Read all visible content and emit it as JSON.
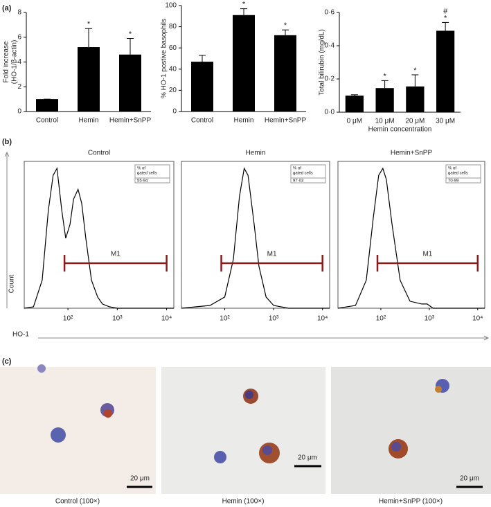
{
  "figure": {
    "panel_labels": [
      "(a)",
      "(b)",
      "(c)"
    ],
    "images": [
      {
        "caption": "Control (100×)",
        "scale_bar": "20 μm"
      },
      {
        "caption": "Hemin (100×)",
        "scale_bar": "20 μm"
      },
      {
        "caption": "Hemin+SnPP (100×)",
        "scale_bar": "20 μm"
      }
    ]
  },
  "chart_data": [
    {
      "type": "bar",
      "ylabel": [
        "Fold increase",
        "(HO-1/β-actin)"
      ],
      "categories": [
        "Control",
        "Hemin",
        "Hemin+SnPP"
      ],
      "values": [
        1,
        5.2,
        4.6
      ],
      "errors": [
        0,
        1.5,
        1.3
      ],
      "annotations": [
        {
          "category": "Hemin",
          "text": "*"
        },
        {
          "category": "Hemin+SnPP",
          "text": "*"
        }
      ],
      "color": "#000000",
      "ylim": [
        0,
        8
      ],
      "yticks": [
        0,
        2,
        4,
        6,
        8
      ]
    },
    {
      "type": "bar",
      "ylabel": [
        "% HO-1 postive basophils"
      ],
      "categories": [
        "Control",
        "Hemin",
        "Hemin+SnPP"
      ],
      "values": [
        47,
        91,
        72
      ],
      "errors": [
        6,
        6,
        5
      ],
      "annotations": [
        {
          "category": "Hemin",
          "text": "*"
        },
        {
          "category": "Hemin+SnPP",
          "text": "*"
        }
      ],
      "color": "#000000",
      "ylim": [
        0,
        100
      ],
      "yticks": [
        0,
        20,
        40,
        60,
        80,
        100
      ]
    },
    {
      "type": "bar",
      "ylabel": [
        "Total bilirubin (mg/dL)"
      ],
      "xlabel": "Hemin concentration",
      "categories": [
        "0 μM",
        "10 μM",
        "20 μM",
        "30 μM"
      ],
      "values": [
        0.1,
        0.145,
        0.155,
        0.49
      ],
      "errors": [
        0.005,
        0.045,
        0.07,
        0.05
      ],
      "annotations": [
        {
          "category": "10 μM",
          "text": "*"
        },
        {
          "category": "20 μM",
          "text": "*"
        },
        {
          "category": "30 μM",
          "text": "*"
        },
        {
          "category": "30 μM",
          "text": "#"
        }
      ],
      "color": "#000000",
      "ylim": [
        0,
        0.6
      ],
      "yticks": [
        {
          "value": 0,
          "label": "0·0"
        },
        {
          "value": 0.2,
          "label": "0·2"
        },
        {
          "value": 0.4,
          "label": "0·4"
        },
        {
          "value": 0.6,
          "label": "0·6"
        }
      ]
    },
    {
      "type": "line",
      "title": "Control",
      "ylabel": "Count",
      "xlabel": "HO-1",
      "xscale": "log",
      "x": [
        13,
        20,
        30,
        40,
        50,
        60,
        75,
        90,
        110,
        130,
        160,
        190,
        230,
        300,
        400,
        500,
        700,
        1000,
        14000
      ],
      "values": [
        0,
        1,
        20,
        70,
        95,
        100,
        70,
        50,
        60,
        78,
        85,
        75,
        50,
        20,
        8,
        3,
        1,
        0,
        0
      ],
      "color": "#000000",
      "xlim": [
        13,
        14000
      ],
      "ylim": [
        0,
        105
      ],
      "xticks": [
        {
          "value": 100,
          "label": "10²"
        },
        {
          "value": 1000,
          "label": "10³"
        },
        {
          "value": 10000,
          "label": "10⁴"
        }
      ],
      "gate": {
        "label": "M1",
        "range": [
          85,
          10000
        ],
        "color": "#8b1a1a"
      },
      "stat_box": {
        "label": [
          "% of",
          "gated cells"
        ],
        "value": "55·94"
      }
    },
    {
      "type": "line",
      "title": "Hemin",
      "xscale": "log",
      "x": [
        13,
        50,
        100,
        150,
        200,
        250,
        300,
        400,
        500,
        700,
        1000,
        2000,
        14000
      ],
      "values": [
        0,
        2,
        8,
        35,
        80,
        100,
        95,
        60,
        30,
        8,
        2,
        0,
        0
      ],
      "color": "#000000",
      "xlim": [
        13,
        14000
      ],
      "ylim": [
        0,
        105
      ],
      "xticks": [
        {
          "value": 100,
          "label": "10²"
        },
        {
          "value": 1000,
          "label": "10³"
        },
        {
          "value": 10000,
          "label": "10⁴"
        }
      ],
      "gate": {
        "label": "M1",
        "range": [
          85,
          10000
        ],
        "color": "#8b1a1a"
      },
      "stat_box": {
        "label": [
          "% of",
          "gated cells"
        ],
        "value": "97·03"
      }
    },
    {
      "type": "line",
      "title": "Hemin+SnPP",
      "xscale": "log",
      "x": [
        13,
        30,
        50,
        70,
        90,
        110,
        130,
        170,
        250,
        400,
        700,
        900,
        1200,
        14000
      ],
      "values": [
        0,
        2,
        20,
        65,
        95,
        100,
        92,
        60,
        20,
        5,
        3,
        3,
        0,
        0
      ],
      "color": "#000000",
      "xlim": [
        13,
        14000
      ],
      "ylim": [
        0,
        105
      ],
      "xticks": [
        {
          "value": 100,
          "label": "10²"
        },
        {
          "value": 1000,
          "label": "10³"
        },
        {
          "value": 10000,
          "label": "10⁴"
        }
      ],
      "gate": {
        "label": "M1",
        "range": [
          85,
          10000
        ],
        "color": "#8b1a1a"
      },
      "stat_box": {
        "label": [
          "% of",
          "gated cells"
        ],
        "value": "70·99"
      }
    }
  ]
}
